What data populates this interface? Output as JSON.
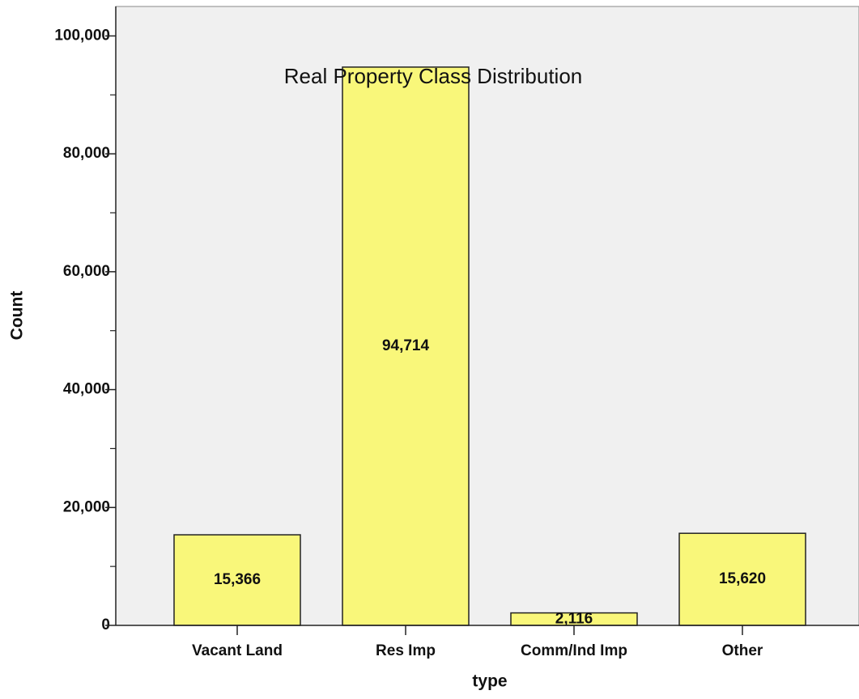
{
  "chart_data": {
    "type": "bar",
    "title": "Real Property Class Distribution",
    "x_label": "type",
    "y_label": "Count",
    "categories": [
      "Vacant Land",
      "Res Imp",
      "Comm/Ind Imp",
      "Other"
    ],
    "values": [
      15366,
      94714,
      2116,
      15620
    ],
    "value_labels": [
      "15,366",
      "94,714",
      "2,116",
      "15,620"
    ],
    "color": "#f9f77a",
    "ylim": [
      0,
      105000
    ],
    "yticks": [
      0,
      {
        "value": 20000,
        "label": "20,000"
      },
      {
        "value": 40000,
        "label": "40,000"
      },
      {
        "value": 60000,
        "label": "60,000"
      },
      {
        "value": 80000,
        "label": "80,000"
      },
      {
        "value": 100000,
        "label": "100,000"
      }
    ]
  }
}
